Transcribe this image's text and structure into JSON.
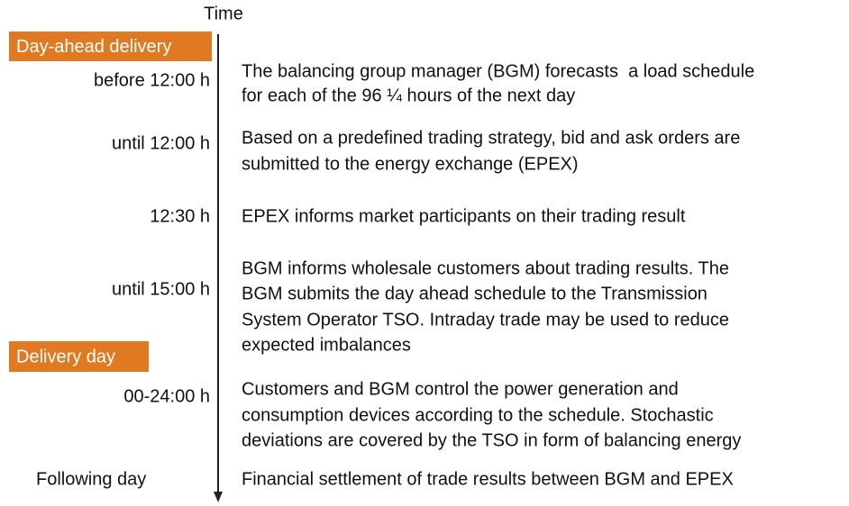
{
  "axis_label": "Time",
  "sections": [
    {
      "label": "Day-ahead delivery"
    },
    {
      "label": "Delivery day"
    }
  ],
  "entries": [
    {
      "time": "before 12:00 h",
      "description": [
        "The balancing group manager (BGM) forecasts  a load schedule",
        "for each of the 96 ¼ hours of the next day"
      ]
    },
    {
      "time": "until 12:00 h",
      "description": [
        "Based on a predefined trading strategy, bid and ask orders are",
        "submitted to the energy exchange (EPEX)"
      ]
    },
    {
      "time": "12:30 h",
      "description": [
        "EPEX informs market participants on their trading result"
      ]
    },
    {
      "time": "until 15:00 h",
      "description": [
        "BGM informs wholesale customers about trading results. The",
        "BGM submits the day ahead schedule to the Transmission",
        "System Operator TSO. Intraday trade may be used to reduce",
        "expected imbalances"
      ]
    },
    {
      "time": "00-24:00 h",
      "description": [
        "Customers and BGM control the power generation and",
        "consumption devices according to the schedule. Stochastic",
        "deviations are covered by the TSO in form of balancing energy"
      ]
    },
    {
      "time": "Following day",
      "description": [
        "Financial settlement of trade results between BGM and EPEX"
      ]
    }
  ]
}
